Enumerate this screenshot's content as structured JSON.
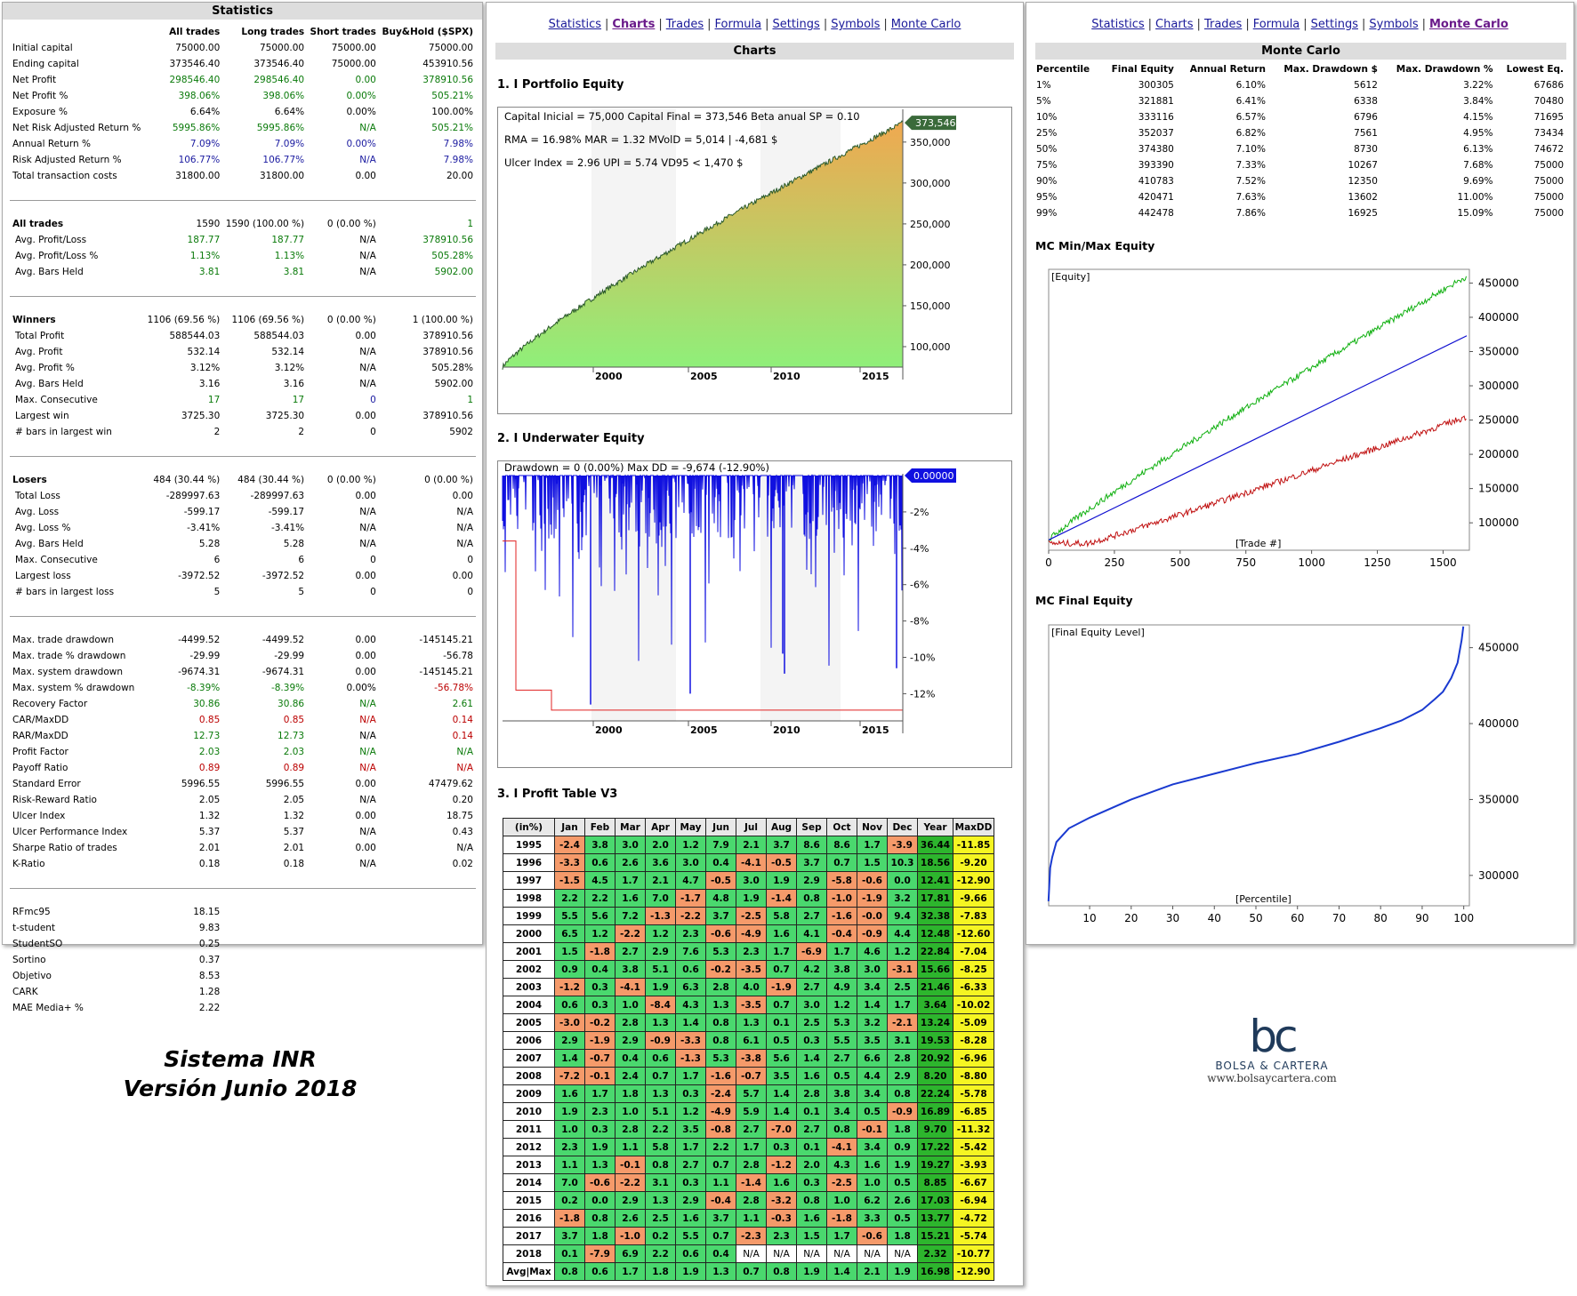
{
  "stats": {
    "title": "Statistics",
    "headers": [
      "All trades",
      "Long trades",
      "Short trades",
      "Buy&Hold ($SPX)"
    ],
    "groups": [
      [
        [
          "Initial capital",
          "75000.00",
          "75000.00",
          "75000.00",
          "75000.00",
          ""
        ],
        [
          "Ending capital",
          "373546.40",
          "373546.40",
          "75000.00",
          "453910.56",
          ""
        ],
        [
          "Net Profit",
          "298546.40",
          "298546.40",
          "0.00",
          "378910.56",
          "g"
        ],
        [
          "Net Profit %",
          "398.06%",
          "398.06%",
          "0.00%",
          "505.21%",
          "g"
        ],
        [
          "Exposure %",
          "6.64%",
          "6.64%",
          "0.00%",
          "100.00%",
          ""
        ],
        [
          "Net Risk Adjusted Return %",
          "5995.86%",
          "5995.86%",
          "N/A",
          "505.21%",
          "g"
        ],
        [
          "Annual Return %",
          "7.09%",
          "7.09%",
          "0.00%",
          "7.98%",
          "b"
        ],
        [
          "Risk Adjusted Return %",
          "106.77%",
          "106.77%",
          "N/A",
          "7.98%",
          "b"
        ],
        [
          "Total transaction costs",
          "31800.00",
          "31800.00",
          "0.00",
          "20.00",
          ""
        ]
      ],
      [
        [
          "All trades",
          "1590",
          "1590 (100.00 %)",
          "0 (0.00 %)",
          "1",
          "h"
        ],
        [
          " Avg. Profit/Loss",
          "187.77",
          "187.77",
          "N/A",
          "378910.56",
          "g"
        ],
        [
          " Avg. Profit/Loss %",
          "1.13%",
          "1.13%",
          "N/A",
          "505.28%",
          "g"
        ],
        [
          " Avg. Bars Held",
          "3.81",
          "3.81",
          "N/A",
          "5902.00",
          "g"
        ]
      ],
      [
        [
          "Winners",
          "1106 (69.56 %)",
          "1106 (69.56 %)",
          "0 (0.00 %)",
          "1 (100.00 %)",
          "h"
        ],
        [
          " Total Profit",
          "588544.03",
          "588544.03",
          "0.00",
          "378910.56",
          ""
        ],
        [
          " Avg. Profit",
          "532.14",
          "532.14",
          "N/A",
          "378910.56",
          ""
        ],
        [
          " Avg. Profit %",
          "3.12%",
          "3.12%",
          "N/A",
          "505.28%",
          ""
        ],
        [
          " Avg. Bars Held",
          "3.16",
          "3.16",
          "N/A",
          "5902.00",
          ""
        ],
        [
          " Max. Consecutive",
          "17",
          "17",
          "0",
          "1",
          "g"
        ],
        [
          " Largest win",
          "3725.30",
          "3725.30",
          "0.00",
          "378910.56",
          ""
        ],
        [
          " # bars in largest win",
          "2",
          "2",
          "0",
          "5902",
          ""
        ]
      ],
      [
        [
          "Losers",
          "484 (30.44 %)",
          "484 (30.44 %)",
          "0 (0.00 %)",
          "0 (0.00 %)",
          "h"
        ],
        [
          " Total Loss",
          "-289997.63",
          "-289997.63",
          "0.00",
          "0.00",
          ""
        ],
        [
          " Avg. Loss",
          "-599.17",
          "-599.17",
          "N/A",
          "N/A",
          ""
        ],
        [
          " Avg. Loss %",
          "-3.41%",
          "-3.41%",
          "N/A",
          "N/A",
          ""
        ],
        [
          " Avg. Bars Held",
          "5.28",
          "5.28",
          "N/A",
          "N/A",
          ""
        ],
        [
          " Max. Consecutive",
          "6",
          "6",
          "0",
          "0",
          ""
        ],
        [
          " Largest loss",
          "-3972.52",
          "-3972.52",
          "0.00",
          "0.00",
          ""
        ],
        [
          " # bars in largest loss",
          "5",
          "5",
          "0",
          "0",
          ""
        ]
      ],
      [
        [
          "Max. trade drawdown",
          "-4499.52",
          "-4499.52",
          "0.00",
          "-145145.21",
          ""
        ],
        [
          "Max. trade % drawdown",
          "-29.99",
          "-29.99",
          "0.00",
          "-56.78",
          ""
        ],
        [
          "Max. system drawdown",
          "-9674.31",
          "-9674.31",
          "0.00",
          "-145145.21",
          ""
        ],
        [
          "Max. system % drawdown",
          "-8.39%",
          "-8.39%",
          "0.00%",
          "-56.78%",
          "gr"
        ],
        [
          "Recovery Factor",
          "30.86",
          "30.86",
          "N/A",
          "2.61",
          "g"
        ],
        [
          "CAR/MaxDD",
          "0.85",
          "0.85",
          "N/A",
          "0.14",
          "r"
        ],
        [
          "RAR/MaxDD",
          "12.73",
          "12.73",
          "N/A",
          "0.14",
          "gr"
        ],
        [
          "Profit Factor",
          "2.03",
          "2.03",
          "N/A",
          "N/A",
          "g"
        ],
        [
          "Payoff Ratio",
          "0.89",
          "0.89",
          "N/A",
          "N/A",
          "r"
        ],
        [
          "Standard Error",
          "5996.55",
          "5996.55",
          "0.00",
          "47479.62",
          ""
        ],
        [
          "Risk-Reward Ratio",
          "2.05",
          "2.05",
          "N/A",
          "0.20",
          ""
        ],
        [
          "Ulcer Index",
          "1.32",
          "1.32",
          "0.00",
          "18.75",
          ""
        ],
        [
          "Ulcer Performance Index",
          "5.37",
          "5.37",
          "N/A",
          "0.43",
          ""
        ],
        [
          "Sharpe Ratio of trades",
          "2.01",
          "2.01",
          "0.00",
          "N/A",
          ""
        ],
        [
          "K-Ratio",
          "0.18",
          "0.18",
          "N/A",
          "0.02",
          ""
        ]
      ],
      [
        [
          "RFmc95",
          "18.15",
          "",
          "",
          "",
          ""
        ],
        [
          "t-student",
          "9.83",
          "",
          "",
          "",
          ""
        ],
        [
          "StudentSO",
          "0.25",
          "",
          "",
          "",
          ""
        ],
        [
          "Sortino",
          "0.37",
          "",
          "",
          "",
          ""
        ],
        [
          "Objetivo",
          "8.53",
          "",
          "",
          "",
          ""
        ],
        [
          "CARK",
          "1.28",
          "",
          "",
          "",
          ""
        ],
        [
          "MAE Media+ %",
          "2.22",
          "",
          "",
          "",
          ""
        ]
      ]
    ]
  },
  "nav": [
    "Statistics",
    "Charts",
    "Trades",
    "Formula",
    "Settings",
    "Symbols",
    "Monte Carlo"
  ],
  "charts_panel": {
    "title": "Charts",
    "c1_title": "1. I Portfolio Equity",
    "c1_line1": "Capital Inicial = 75,000  Capital Final = 373,546  Beta anual SP = 0.10",
    "c1_line2": "RMA = 16.98%  MAR = 1.32  MVolD = 5,014 | -4,681 $",
    "c1_line3": "Ulcer Index = 2.96   UPI = 5.74   VD95 < 1,470 $",
    "c1_last": "373,546",
    "c1_yticks": [
      "350,000",
      "300,000",
      "250,000",
      "200,000",
      "150,000",
      "100,000"
    ],
    "xticks": [
      "2000",
      "2005",
      "2010",
      "2015"
    ],
    "c2_title": "2. I Underwater Equity",
    "c2_label": "Drawdown = 0 (0.00%)       Max DD = -9,674 (-12.90%)",
    "c2_last": "0.00000",
    "c2_yticks": [
      "-2%",
      "-4%",
      "-6%",
      "-8%",
      "-10%",
      "-12%"
    ],
    "c3_title": "3. I Profit Table V3"
  },
  "profit_table": {
    "headers": [
      "(in%)",
      "Jan",
      "Feb",
      "Mar",
      "Apr",
      "May",
      "Jun",
      "Jul",
      "Aug",
      "Sep",
      "Oct",
      "Nov",
      "Dec",
      "Year",
      "MaxDD"
    ],
    "rows": [
      [
        "1995",
        "-2.4",
        "3.8",
        "3.0",
        "2.0",
        "1.2",
        "7.9",
        "2.1",
        "3.7",
        "8.6",
        "8.6",
        "1.7",
        "-3.9",
        "36.44",
        "-11.85"
      ],
      [
        "1996",
        "-3.3",
        "0.6",
        "2.6",
        "3.6",
        "3.0",
        "0.4",
        "-4.1",
        "-0.5",
        "3.7",
        "0.7",
        "1.5",
        "10.3",
        "18.56",
        "-9.20"
      ],
      [
        "1997",
        "-1.5",
        "4.5",
        "1.7",
        "2.1",
        "4.7",
        "-0.5",
        "3.0",
        "1.9",
        "2.9",
        "-5.8",
        "-0.6",
        "0.0",
        "12.41",
        "-12.90"
      ],
      [
        "1998",
        "2.2",
        "2.2",
        "1.6",
        "7.0",
        "-1.7",
        "4.8",
        "1.9",
        "-1.4",
        "0.8",
        "-1.0",
        "-1.9",
        "3.2",
        "17.81",
        "-9.66"
      ],
      [
        "1999",
        "5.5",
        "5.6",
        "7.2",
        "-1.3",
        "-2.2",
        "3.7",
        "-2.5",
        "5.8",
        "2.7",
        "-1.6",
        "-0.0",
        "9.4",
        "32.38",
        "-7.83"
      ],
      [
        "2000",
        "6.5",
        "1.2",
        "-2.2",
        "1.2",
        "2.3",
        "-0.6",
        "-4.9",
        "1.6",
        "4.1",
        "-0.4",
        "-0.9",
        "4.4",
        "12.48",
        "-12.60"
      ],
      [
        "2001",
        "1.5",
        "-1.8",
        "2.7",
        "2.9",
        "7.6",
        "5.3",
        "2.3",
        "1.7",
        "-6.9",
        "1.7",
        "4.6",
        "1.2",
        "22.84",
        "-7.04"
      ],
      [
        "2002",
        "0.9",
        "0.4",
        "3.8",
        "5.1",
        "0.6",
        "-0.2",
        "-3.5",
        "0.7",
        "4.2",
        "3.8",
        "3.0",
        "-3.1",
        "15.66",
        "-8.25"
      ],
      [
        "2003",
        "-1.2",
        "0.3",
        "-4.1",
        "1.9",
        "6.3",
        "2.8",
        "4.0",
        "-1.9",
        "2.7",
        "4.9",
        "3.4",
        "2.5",
        "21.46",
        "-6.33"
      ],
      [
        "2004",
        "0.6",
        "0.3",
        "1.0",
        "-8.4",
        "4.3",
        "1.3",
        "-3.5",
        "0.7",
        "3.0",
        "1.2",
        "1.4",
        "1.7",
        "3.64",
        "-10.02"
      ],
      [
        "2005",
        "-3.0",
        "-0.2",
        "2.8",
        "1.3",
        "1.4",
        "0.8",
        "1.3",
        "0.1",
        "2.5",
        "5.3",
        "3.2",
        "-2.1",
        "13.24",
        "-5.09"
      ],
      [
        "2006",
        "2.9",
        "-1.9",
        "2.9",
        "-0.9",
        "-3.3",
        "0.8",
        "6.1",
        "0.5",
        "0.3",
        "5.5",
        "3.5",
        "3.1",
        "19.53",
        "-8.28"
      ],
      [
        "2007",
        "1.4",
        "-0.7",
        "0.4",
        "0.6",
        "-1.3",
        "5.3",
        "-3.8",
        "5.6",
        "1.4",
        "2.7",
        "6.6",
        "2.8",
        "20.92",
        "-6.96"
      ],
      [
        "2008",
        "-7.2",
        "-0.1",
        "2.4",
        "0.7",
        "1.7",
        "-1.6",
        "-0.7",
        "3.5",
        "1.6",
        "0.5",
        "4.4",
        "2.9",
        "8.20",
        "-8.80"
      ],
      [
        "2009",
        "1.6",
        "1.7",
        "1.8",
        "1.3",
        "0.3",
        "-2.4",
        "5.7",
        "1.4",
        "2.8",
        "3.8",
        "3.4",
        "0.8",
        "22.24",
        "-5.78"
      ],
      [
        "2010",
        "1.9",
        "2.3",
        "1.0",
        "5.1",
        "1.2",
        "-4.9",
        "5.9",
        "1.4",
        "0.1",
        "3.4",
        "0.5",
        "-0.9",
        "16.89",
        "-6.85"
      ],
      [
        "2011",
        "1.0",
        "0.3",
        "2.8",
        "2.2",
        "3.5",
        "-0.8",
        "2.7",
        "-7.0",
        "2.7",
        "0.8",
        "-0.1",
        "1.8",
        "9.70",
        "-11.32"
      ],
      [
        "2012",
        "2.3",
        "1.9",
        "1.1",
        "5.8",
        "1.7",
        "2.2",
        "1.7",
        "0.3",
        "0.1",
        "-4.1",
        "3.4",
        "0.9",
        "17.22",
        "-5.42"
      ],
      [
        "2013",
        "1.1",
        "1.3",
        "-0.1",
        "0.8",
        "2.7",
        "0.7",
        "2.8",
        "-1.2",
        "2.0",
        "4.3",
        "1.6",
        "1.9",
        "19.27",
        "-3.93"
      ],
      [
        "2014",
        "7.0",
        "-0.6",
        "-2.2",
        "3.1",
        "0.3",
        "1.1",
        "-1.4",
        "1.6",
        "0.3",
        "-2.5",
        "1.0",
        "0.5",
        "8.85",
        "-6.67"
      ],
      [
        "2015",
        "0.2",
        "0.0",
        "2.9",
        "1.3",
        "2.9",
        "-0.4",
        "2.8",
        "-3.2",
        "0.8",
        "1.0",
        "6.2",
        "2.6",
        "17.03",
        "-6.94"
      ],
      [
        "2016",
        "-1.8",
        "0.8",
        "2.6",
        "2.5",
        "1.6",
        "3.7",
        "1.1",
        "-0.3",
        "1.6",
        "-1.8",
        "3.3",
        "0.5",
        "13.77",
        "-4.72"
      ],
      [
        "2017",
        "3.7",
        "1.8",
        "-1.0",
        "0.2",
        "5.5",
        "0.7",
        "-2.3",
        "2.3",
        "1.5",
        "1.7",
        "-0.6",
        "1.8",
        "15.21",
        "-5.74"
      ],
      [
        "2018",
        "0.1",
        "-7.9",
        "6.9",
        "2.2",
        "0.6",
        "0.4",
        "N/A",
        "N/A",
        "N/A",
        "N/A",
        "N/A",
        "N/A",
        "2.32",
        "-10.77"
      ],
      [
        "Avg|Max",
        "0.8",
        "0.6",
        "1.7",
        "1.8",
        "1.9",
        "1.3",
        "0.7",
        "0.8",
        "1.9",
        "1.4",
        "2.1",
        "1.9",
        "16.98",
        "-12.90"
      ]
    ]
  },
  "mc": {
    "title": "Monte Carlo",
    "headers": [
      "Percentile",
      "Final Equity",
      "Annual Return",
      "Max. Drawdown $",
      "Max. Drawdown %",
      "Lowest Eq."
    ],
    "rows": [
      [
        "1%",
        "300305",
        "6.10%",
        "5612",
        "3.22%",
        "67686"
      ],
      [
        "5%",
        "321881",
        "6.41%",
        "6338",
        "3.84%",
        "70480"
      ],
      [
        "10%",
        "333116",
        "6.57%",
        "6796",
        "4.15%",
        "71695"
      ],
      [
        "25%",
        "352037",
        "6.82%",
        "7561",
        "4.95%",
        "73434"
      ],
      [
        "50%",
        "374380",
        "7.10%",
        "8730",
        "6.13%",
        "74672"
      ],
      [
        "75%",
        "393390",
        "7.33%",
        "10267",
        "7.68%",
        "75000"
      ],
      [
        "90%",
        "410783",
        "7.52%",
        "12350",
        "9.69%",
        "75000"
      ],
      [
        "95%",
        "420471",
        "7.63%",
        "13602",
        "11.00%",
        "75000"
      ],
      [
        "99%",
        "442478",
        "7.86%",
        "16925",
        "15.09%",
        "75000"
      ]
    ],
    "mm_title": "MC Min/Max Equity",
    "mm_label": "[Equity]",
    "mm_xlabel": "[Trade #]",
    "mm_yticks": [
      "450000",
      "400000",
      "350000",
      "300000",
      "250000",
      "200000",
      "150000",
      "100000"
    ],
    "mm_xticks": [
      "0",
      "250",
      "500",
      "750",
      "1000",
      "1250",
      "1500"
    ],
    "fe_title": "MC Final Equity",
    "fe_label": "[Final Equity Level]",
    "fe_xlabel": "[Percentile]",
    "fe_yticks": [
      "450000",
      "400000",
      "350000",
      "300000"
    ],
    "fe_xticks": [
      "10",
      "20",
      "30",
      "40",
      "50",
      "60",
      "70",
      "80",
      "90",
      "100"
    ]
  },
  "footer": {
    "line1": "Sistema INR",
    "line2": "Versión Junio 2018"
  },
  "logo": {
    "mark": "bc",
    "name": "BOLSA & CARTERA",
    "url": "www.bolsaycartera.com"
  },
  "colors": {
    "pos": "#4ad86e",
    "neg": "#f59a6a",
    "year": "#2db52d",
    "maxdd": "#f5f522",
    "equity_top": "#f0a850",
    "equity_bottom": "#8ef07a",
    "underwater": "#1010e0",
    "mc_max": "#10b010",
    "mc_avg": "#1010d0",
    "mc_min": "#c01010"
  }
}
